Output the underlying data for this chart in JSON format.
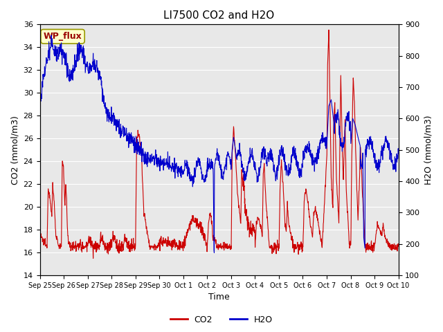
{
  "title": "LI7500 CO2 and H2O",
  "xlabel": "Time",
  "ylabel_left": "CO2 (mmol/m3)",
  "ylabel_right": "H2O (mmol/m3)",
  "annotation": "WP_flux",
  "ylim_left": [
    14,
    36
  ],
  "ylim_right": [
    100,
    900
  ],
  "yticks_left": [
    14,
    16,
    18,
    20,
    22,
    24,
    26,
    28,
    30,
    32,
    34,
    36
  ],
  "yticks_right": [
    100,
    200,
    300,
    400,
    500,
    600,
    700,
    800,
    900
  ],
  "co2_color": "#cc0000",
  "h2o_color": "#0000cc",
  "bg_color": "#e8e8e8",
  "annotation_facecolor": "#ffffcc",
  "annotation_edgecolor": "#999900",
  "annotation_textcolor": "#990000",
  "legend_co2": "CO2",
  "legend_h2o": "H2O",
  "title_fontsize": 11,
  "axis_fontsize": 9,
  "tick_fontsize": 8,
  "xtick_labels": [
    "Sep 25",
    "Sep 26",
    "Sep 27",
    "Sep 28",
    "Sep 29",
    "Sep 30",
    "Oct 1",
    "Oct 2",
    "Oct 3",
    "Oct 4",
    "Oct 5",
    "Oct 6",
    "Oct 7",
    "Oct 8",
    "Oct 9",
    "Oct 10"
  ]
}
